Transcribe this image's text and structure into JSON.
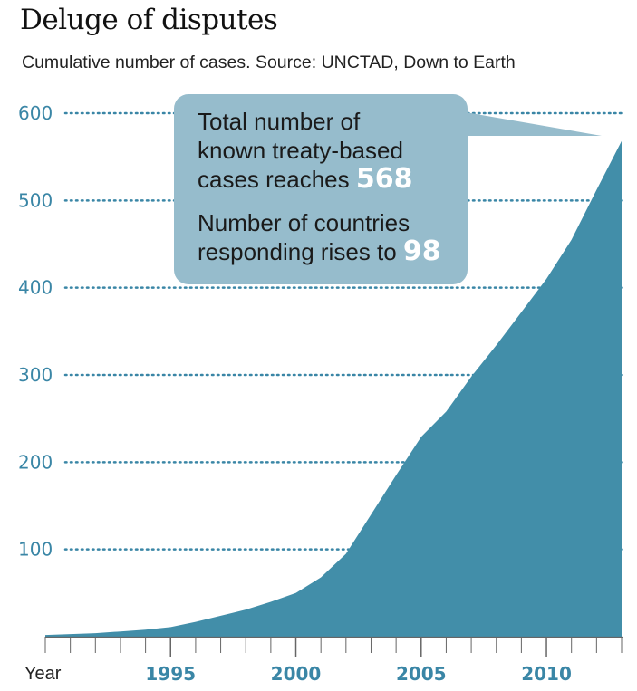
{
  "title": "Deluge of disputes",
  "subtitle": "Cumulative number of cases. Source: UNCTAD, Down to Earth",
  "callout": {
    "line1": "Total number of",
    "line2": "known treaty-based",
    "line3_prefix": "cases reaches ",
    "line3_value": "568",
    "line4": "Number of countries",
    "line5_prefix": "responding rises to ",
    "line5_value": "98"
  },
  "chart_data": {
    "type": "area",
    "title": "Deluge of disputes",
    "xlabel": "Year",
    "ylabel": "",
    "xlim": [
      1990,
      2013
    ],
    "ylim": [
      0,
      600
    ],
    "yticks": [
      100,
      200,
      300,
      400,
      500,
      600
    ],
    "xticks": [
      1995,
      2000,
      2005,
      2010
    ],
    "grid": "dotted horizontal",
    "color": "#428ea9",
    "x": [
      1990,
      1991,
      1992,
      1993,
      1994,
      1995,
      1996,
      1997,
      1998,
      1999,
      2000,
      2001,
      2002,
      2003,
      2004,
      2005,
      2006,
      2007,
      2008,
      2009,
      2010,
      2011,
      2012,
      2013
    ],
    "values": [
      2,
      3,
      4,
      6,
      8,
      11,
      17,
      24,
      31,
      40,
      50,
      68,
      95,
      140,
      185,
      229,
      258,
      298,
      334,
      372,
      410,
      455,
      512,
      568
    ]
  }
}
